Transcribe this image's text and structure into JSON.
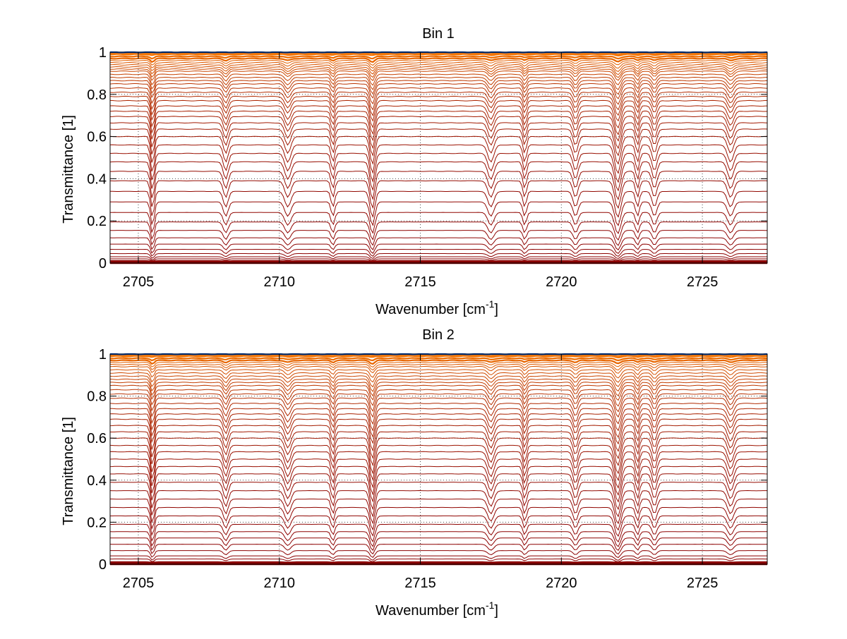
{
  "chart_data": [
    {
      "type": "line",
      "title": "Bin 1",
      "xlabel": "Wavenumber [cm",
      "xlabel_sup": "-1",
      "xlabel_close": "]",
      "ylabel": "Transmittance [1]",
      "xlim": [
        2704,
        2727.3
      ],
      "ylim": [
        0,
        1
      ],
      "xticks": [
        2705,
        2710,
        2715,
        2720,
        2725
      ],
      "xtick_labels": [
        "2705",
        "2710",
        "2715",
        "2720",
        "2725"
      ],
      "yticks": [
        0,
        0.2,
        0.4,
        0.6,
        0.8,
        1
      ],
      "ytick_labels": [
        "0",
        "0.2",
        "0.4",
        "0.6",
        "0.8",
        "1"
      ],
      "grid": true,
      "absorption_lines": [
        2705.5,
        2708.1,
        2710.3,
        2711.9,
        2713.3,
        2717.5,
        2718.7,
        2720.5,
        2722.0,
        2722.7,
        2723.3,
        2726.0
      ],
      "series_baselines": [
        0.005,
        0.012,
        0.02,
        0.03,
        0.045,
        0.065,
        0.09,
        0.12,
        0.155,
        0.195,
        0.24,
        0.29,
        0.34,
        0.39,
        0.435,
        0.48,
        0.52,
        0.56,
        0.6,
        0.635,
        0.665,
        0.695,
        0.72,
        0.745,
        0.77,
        0.79,
        0.81,
        0.83,
        0.85,
        0.865,
        0.88,
        0.895,
        0.91,
        0.92,
        0.93,
        0.94,
        0.95,
        0.96,
        0.97,
        0.98,
        0.99,
        0.995,
        1.0
      ],
      "series_color_low": "#8b0000",
      "series_color_high": "#ff7f00",
      "top_series_color": "#0050d0"
    },
    {
      "type": "line",
      "title": "Bin 2",
      "xlabel": "Wavenumber [cm",
      "xlabel_sup": "-1",
      "xlabel_close": "]",
      "ylabel": "Transmittance [1]",
      "xlim": [
        2704,
        2727.3
      ],
      "ylim": [
        0,
        1
      ],
      "xticks": [
        2705,
        2710,
        2715,
        2720,
        2725
      ],
      "xtick_labels": [
        "2705",
        "2710",
        "2715",
        "2720",
        "2725"
      ],
      "yticks": [
        0,
        0.2,
        0.4,
        0.6,
        0.8,
        1
      ],
      "ytick_labels": [
        "0",
        "0.2",
        "0.4",
        "0.6",
        "0.8",
        "1"
      ],
      "grid": true,
      "absorption_lines": [
        2705.5,
        2708.1,
        2710.3,
        2711.9,
        2713.3,
        2717.5,
        2718.7,
        2720.5,
        2722.0,
        2722.7,
        2723.3,
        2726.0
      ],
      "series_baselines": [
        0.005,
        0.012,
        0.025,
        0.04,
        0.065,
        0.095,
        0.125,
        0.155,
        0.19,
        0.23,
        0.27,
        0.31,
        0.35,
        0.39,
        0.43,
        0.465,
        0.5,
        0.535,
        0.565,
        0.6,
        0.63,
        0.66,
        0.69,
        0.715,
        0.74,
        0.765,
        0.79,
        0.81,
        0.83,
        0.85,
        0.865,
        0.88,
        0.895,
        0.91,
        0.925,
        0.94,
        0.95,
        0.96,
        0.97,
        0.98,
        0.99,
        0.995,
        1.0
      ],
      "series_color_low": "#8b0000",
      "series_color_high": "#ff7f00",
      "top_series_color": "#0050d0"
    }
  ]
}
